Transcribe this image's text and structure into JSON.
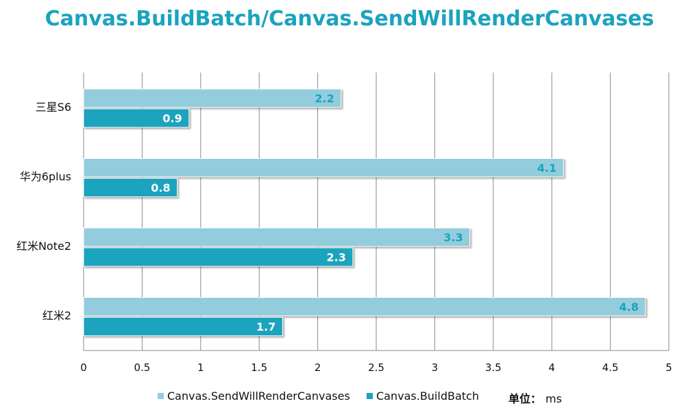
{
  "chart_data": {
    "type": "bar",
    "orientation": "horizontal",
    "title": "Canvas.BuildBatch/Canvas.SendWillRenderCanvases",
    "categories": [
      "三星S6",
      "华为6plus",
      "红米Note2",
      "红米2"
    ],
    "series": [
      {
        "name": "Canvas.SendWillRenderCanvases",
        "values": [
          2.2,
          4.1,
          3.3,
          4.8
        ],
        "color": "#93CDDD"
      },
      {
        "name": "Canvas.BuildBatch",
        "values": [
          0.9,
          0.8,
          2.3,
          1.7
        ],
        "color": "#1AA3BE"
      }
    ],
    "xlim": [
      0,
      5
    ],
    "xticks": [
      "0",
      "0.5",
      "1",
      "1.5",
      "2",
      "2.5",
      "3",
      "3.5",
      "4",
      "4.5",
      "5"
    ],
    "grid": true,
    "legend_position": "bottom",
    "unit_label": "单位：",
    "unit": "ms",
    "colors": {
      "title": "#1AA3BE",
      "grid": "#888888"
    }
  }
}
